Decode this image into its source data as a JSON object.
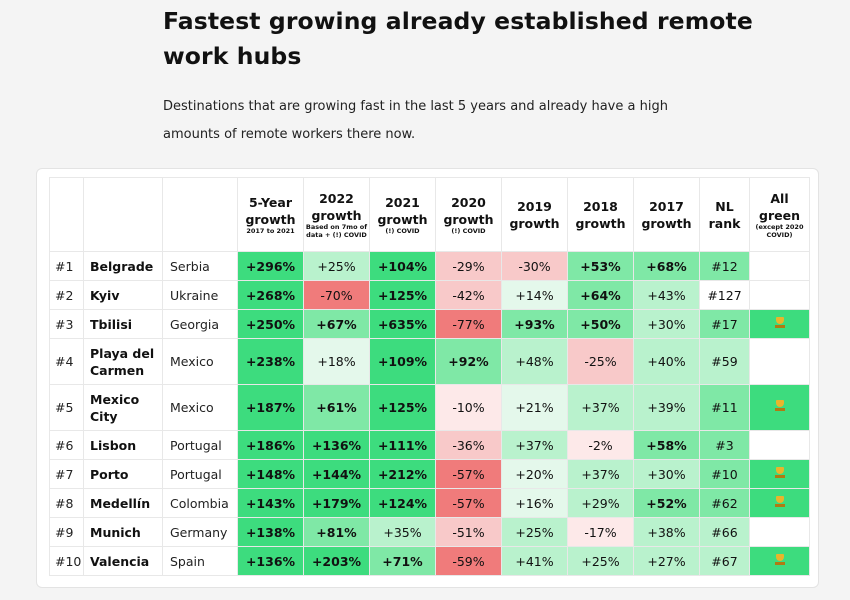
{
  "title": "Fastest growing already established remote work hubs",
  "subtitle": "Destinations that are growing fast in the last 5 years and already have a high amounts of remote workers there now.",
  "headers": [
    {
      "main": "",
      "sub": ""
    },
    {
      "main": "",
      "sub": ""
    },
    {
      "main": "",
      "sub": ""
    },
    {
      "main": "5-Year growth",
      "sub": "2017 to 2021"
    },
    {
      "main": "2022 growth",
      "sub": "Based on 7mo of data + (!) COVID"
    },
    {
      "main": "2021 growth",
      "sub": "(!) COVID"
    },
    {
      "main": "2020 growth",
      "sub": "(!) COVID"
    },
    {
      "main": "2019 growth",
      "sub": ""
    },
    {
      "main": "2018 growth",
      "sub": ""
    },
    {
      "main": "2017 growth",
      "sub": ""
    },
    {
      "main": "NL rank",
      "sub": ""
    },
    {
      "main": "All green",
      "sub": "(except 2020 COVID)"
    }
  ],
  "rows": [
    {
      "rank": "#1",
      "city": "Belgrade",
      "country": "Serbia",
      "v5": "+296%",
      "y2022": "+25%",
      "y2021": "+104%",
      "y2020": "-29%",
      "y2019": "-30%",
      "y2018": "+53%",
      "y2017": "+68%",
      "nl": "#12",
      "green": false
    },
    {
      "rank": "#2",
      "city": "Kyiv",
      "country": "Ukraine",
      "v5": "+268%",
      "y2022": "-70%",
      "y2021": "+125%",
      "y2020": "-42%",
      "y2019": "+14%",
      "y2018": "+64%",
      "y2017": "+43%",
      "nl": "#127",
      "green": false
    },
    {
      "rank": "#3",
      "city": "Tbilisi",
      "country": "Georgia",
      "v5": "+250%",
      "y2022": "+67%",
      "y2021": "+635%",
      "y2020": "-77%",
      "y2019": "+93%",
      "y2018": "+50%",
      "y2017": "+30%",
      "nl": "#17",
      "green": true
    },
    {
      "rank": "#4",
      "city": "Playa del Carmen",
      "country": "Mexico",
      "v5": "+238%",
      "y2022": "+18%",
      "y2021": "+109%",
      "y2020": "+92%",
      "y2019": "+48%",
      "y2018": "-25%",
      "y2017": "+40%",
      "nl": "#59",
      "green": false
    },
    {
      "rank": "#5",
      "city": "Mexico City",
      "country": "Mexico",
      "v5": "+187%",
      "y2022": "+61%",
      "y2021": "+125%",
      "y2020": "-10%",
      "y2019": "+21%",
      "y2018": "+37%",
      "y2017": "+39%",
      "nl": "#11",
      "green": true
    },
    {
      "rank": "#6",
      "city": "Lisbon",
      "country": "Portugal",
      "v5": "+186%",
      "y2022": "+136%",
      "y2021": "+111%",
      "y2020": "-36%",
      "y2019": "+37%",
      "y2018": "-2%",
      "y2017": "+58%",
      "nl": "#3",
      "green": false
    },
    {
      "rank": "#7",
      "city": "Porto",
      "country": "Portugal",
      "v5": "+148%",
      "y2022": "+144%",
      "y2021": "+212%",
      "y2020": "-57%",
      "y2019": "+20%",
      "y2018": "+37%",
      "y2017": "+30%",
      "nl": "#10",
      "green": true
    },
    {
      "rank": "#8",
      "city": "Medellín",
      "country": "Colombia",
      "v5": "+143%",
      "y2022": "+179%",
      "y2021": "+124%",
      "y2020": "-57%",
      "y2019": "+16%",
      "y2018": "+29%",
      "y2017": "+52%",
      "nl": "#62",
      "green": true
    },
    {
      "rank": "#9",
      "city": "Munich",
      "country": "Germany",
      "v5": "+138%",
      "y2022": "+81%",
      "y2021": "+35%",
      "y2020": "-51%",
      "y2019": "+25%",
      "y2018": "-17%",
      "y2017": "+38%",
      "nl": "#66",
      "green": false
    },
    {
      "rank": "#10",
      "city": "Valencia",
      "country": "Spain",
      "v5": "+136%",
      "y2022": "+203%",
      "y2021": "+71%",
      "y2020": "-59%",
      "y2019": "+41%",
      "y2018": "+25%",
      "y2017": "+27%",
      "nl": "#67",
      "green": true
    }
  ],
  "colors": {
    "strong_green": "#3ddc7e",
    "green": "#7fe8a6",
    "light_green": "#b9f2cd",
    "pale_green": "#e4f8eb",
    "strong_red": "#f07b7b",
    "light_red": "#f8c9c9",
    "pale_red": "#fde9e9",
    "trophy_icon": "trophy-icon"
  }
}
